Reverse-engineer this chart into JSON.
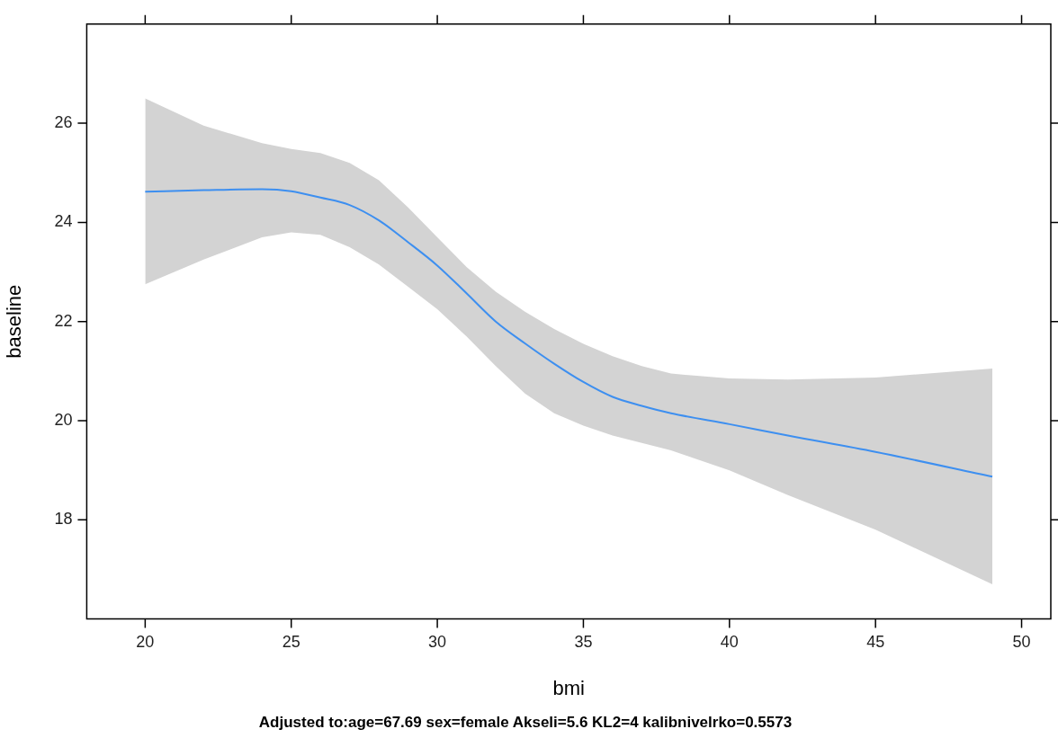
{
  "chart_data": {
    "type": "line",
    "xlabel": "bmi",
    "ylabel": "baseline",
    "annotations": [
      "Adjusted to:age=67.69 sex=female Akseli=5.6 KL2=4 kalibnivelrko=0.5573"
    ],
    "x": [
      20,
      22,
      24,
      25,
      26,
      27,
      28,
      29,
      30,
      31,
      32,
      33,
      34,
      35,
      36,
      37,
      38,
      40,
      42,
      45,
      49
    ],
    "series": [
      {
        "color": "#3d8ff0",
        "values": [
          24.62,
          24.65,
          24.67,
          24.63,
          24.5,
          24.35,
          24.04,
          23.6,
          23.13,
          22.57,
          22.0,
          21.56,
          21.15,
          20.78,
          20.48,
          20.3,
          20.15,
          19.93,
          19.7,
          19.37,
          18.87
        ],
        "upper": [
          26.5,
          25.95,
          25.6,
          25.48,
          25.4,
          25.2,
          24.85,
          24.3,
          23.7,
          23.1,
          22.6,
          22.2,
          21.85,
          21.55,
          21.3,
          21.1,
          20.95,
          20.85,
          20.83,
          20.87,
          21.05
        ],
        "lower": [
          22.75,
          23.25,
          23.7,
          23.8,
          23.75,
          23.5,
          23.15,
          22.7,
          22.25,
          21.7,
          21.1,
          20.55,
          20.15,
          19.9,
          19.7,
          19.55,
          19.4,
          19.0,
          18.5,
          17.8,
          16.7
        ]
      }
    ],
    "xlim": [
      18,
      51
    ],
    "xticks": [
      20,
      25,
      30,
      35,
      40,
      45,
      50
    ],
    "ylim": [
      16,
      28
    ],
    "yticks": [
      18,
      20,
      22,
      24,
      26
    ],
    "grid": false,
    "legend": false,
    "line_style": "solid",
    "marker": "none"
  }
}
